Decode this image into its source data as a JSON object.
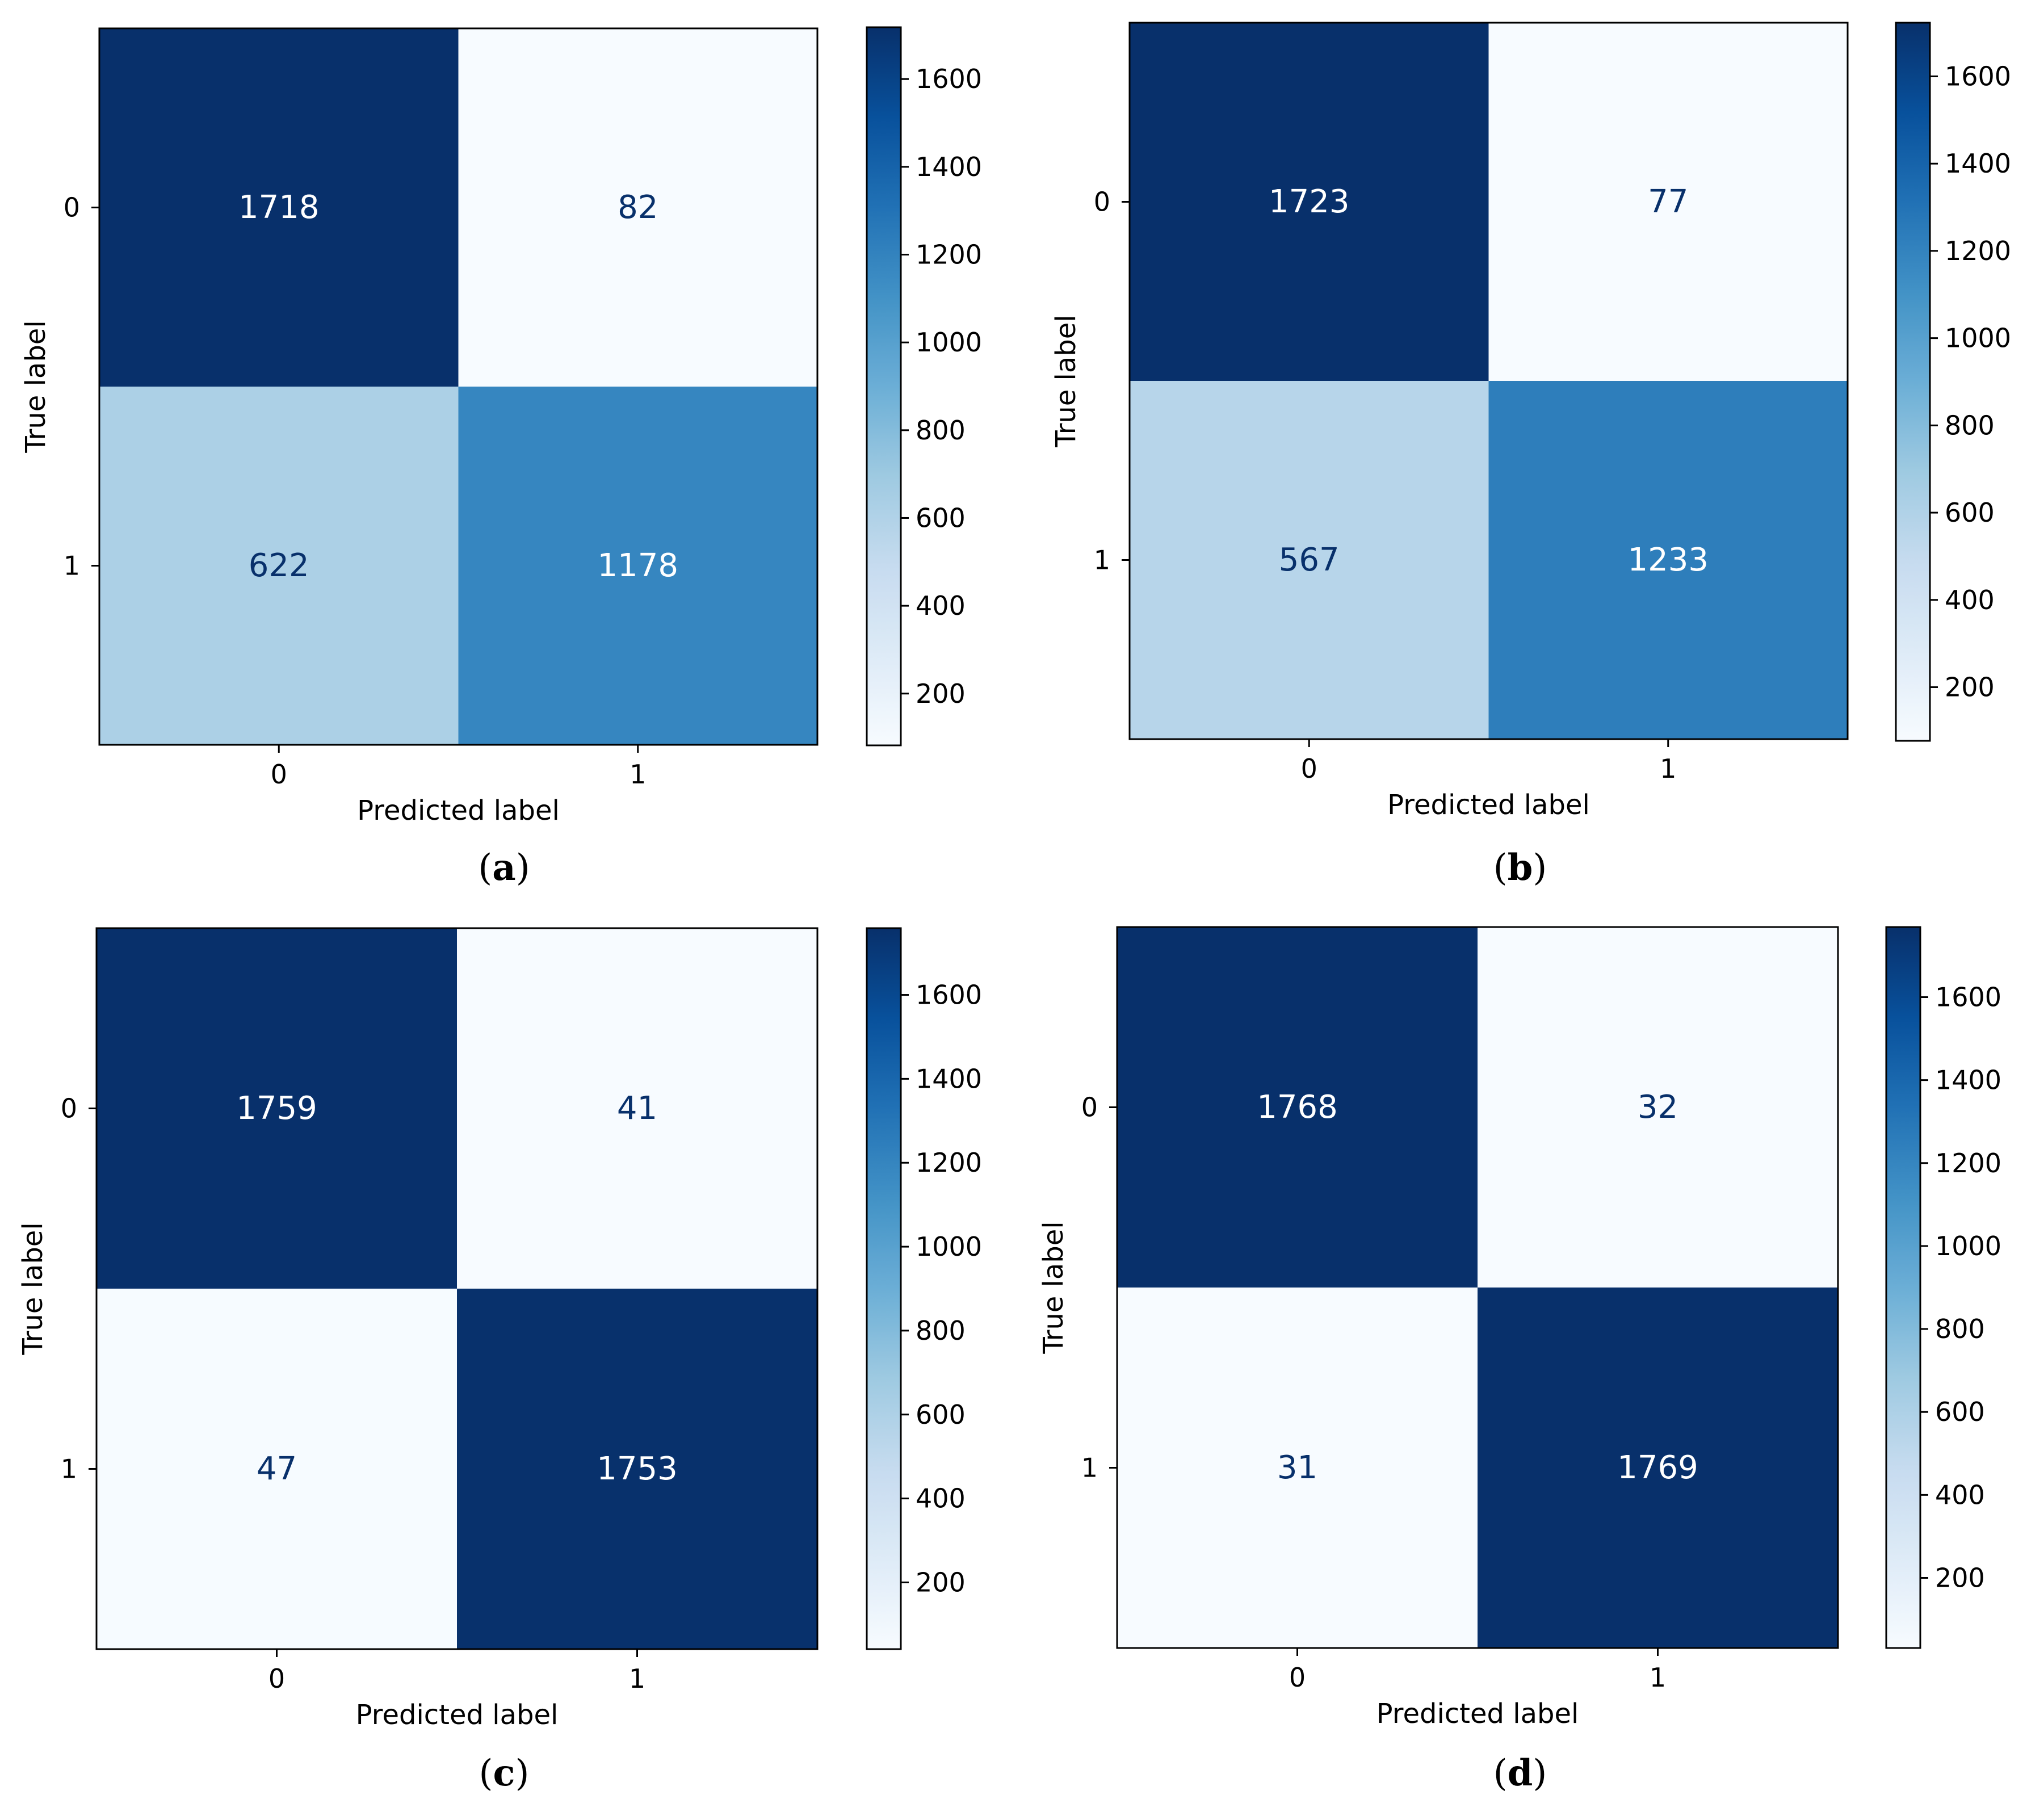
{
  "colors": {
    "cmap": [
      "#f7fbff",
      "#deebf7",
      "#c6dbef",
      "#9ecae1",
      "#6baed6",
      "#4292c6",
      "#2171b5",
      "#08519c",
      "#08306b"
    ],
    "cmap_positions": [
      0,
      0.125,
      0.25,
      0.375,
      0.5,
      0.625,
      0.75,
      0.875,
      1
    ],
    "axis": "#000000",
    "text_dark": "#08306b",
    "text_light": "#ffffff"
  },
  "chart_data": [
    {
      "type": "heatmap",
      "caption": "(a)",
      "caption_letter": "a",
      "xlabel": "Predicted label",
      "ylabel": "True label",
      "x_ticks": [
        "0",
        "1"
      ],
      "y_ticks": [
        "0",
        "1"
      ],
      "matrix": [
        [
          1718,
          82
        ],
        [
          622,
          1178
        ]
      ],
      "colorbar": {
        "vmin": 82,
        "vmax": 1718,
        "ticks": [
          200,
          400,
          600,
          800,
          1000,
          1200,
          1400,
          1600
        ]
      }
    },
    {
      "type": "heatmap",
      "caption": "(b)",
      "caption_letter": "b",
      "xlabel": "Predicted label",
      "ylabel": "True label",
      "x_ticks": [
        "0",
        "1"
      ],
      "y_ticks": [
        "0",
        "1"
      ],
      "matrix": [
        [
          1723,
          77
        ],
        [
          567,
          1233
        ]
      ],
      "colorbar": {
        "vmin": 77,
        "vmax": 1723,
        "ticks": [
          200,
          400,
          600,
          800,
          1000,
          1200,
          1400,
          1600
        ]
      }
    },
    {
      "type": "heatmap",
      "caption": "(c)",
      "caption_letter": "c",
      "xlabel": "Predicted label",
      "ylabel": "True label",
      "x_ticks": [
        "0",
        "1"
      ],
      "y_ticks": [
        "0",
        "1"
      ],
      "matrix": [
        [
          1759,
          41
        ],
        [
          47,
          1753
        ]
      ],
      "colorbar": {
        "vmin": 41,
        "vmax": 1759,
        "ticks": [
          200,
          400,
          600,
          800,
          1000,
          1200,
          1400,
          1600
        ]
      }
    },
    {
      "type": "heatmap",
      "caption": "(d)",
      "caption_letter": "d",
      "xlabel": "Predicted label",
      "ylabel": "True label",
      "x_ticks": [
        "0",
        "1"
      ],
      "y_ticks": [
        "0",
        "1"
      ],
      "matrix": [
        [
          1768,
          32
        ],
        [
          31,
          1769
        ]
      ],
      "colorbar": {
        "vmin": 31,
        "vmax": 1769,
        "ticks": [
          200,
          400,
          600,
          800,
          1000,
          1200,
          1400,
          1600
        ]
      }
    }
  ]
}
